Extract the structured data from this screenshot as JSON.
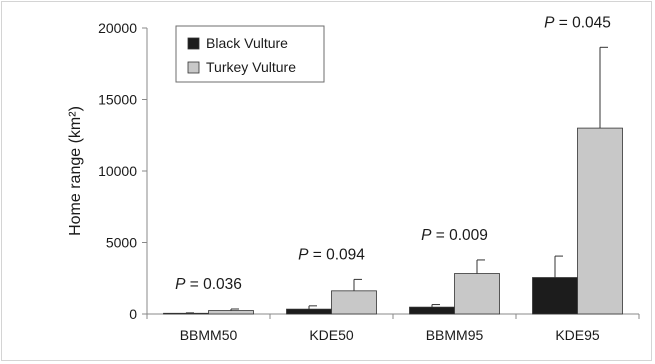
{
  "chart_data": {
    "type": "bar",
    "categories": [
      "BBMM50",
      "KDE50",
      "BBMM95",
      "KDE95"
    ],
    "series": [
      {
        "name": "Black Vulture",
        "values": [
          50,
          340,
          480,
          2550
        ],
        "errors": [
          30,
          230,
          180,
          1500
        ],
        "color": "#1c1c1c"
      },
      {
        "name": "Turkey Vulture",
        "values": [
          240,
          1620,
          2830,
          13000
        ],
        "errors": [
          110,
          800,
          950,
          5650
        ],
        "color": "#c8c8c8"
      }
    ],
    "annotations": [
      {
        "category": "BBMM50",
        "p_label": "P",
        "text": " = 0.036"
      },
      {
        "category": "KDE50",
        "p_label": "P",
        "text": " = 0.094"
      },
      {
        "category": "BBMM95",
        "p_label": "P",
        "text": " = 0.009"
      },
      {
        "category": "KDE95",
        "p_label": "P",
        "text": " = 0.045"
      }
    ],
    "ylabel": "Home range (km²)",
    "xlabel": "",
    "title": "",
    "ylim": [
      0,
      20000
    ],
    "yticks": [
      "0",
      "5000",
      "10000",
      "15000",
      "20000"
    ],
    "yticks_values": [
      0,
      5000,
      10000,
      15000,
      20000
    ],
    "grid": false,
    "legend_position": "top-left",
    "colors": {
      "axis": "#888888",
      "frame": "#d4d4d4",
      "bar_stroke": "#333333",
      "error": "#333333"
    }
  }
}
